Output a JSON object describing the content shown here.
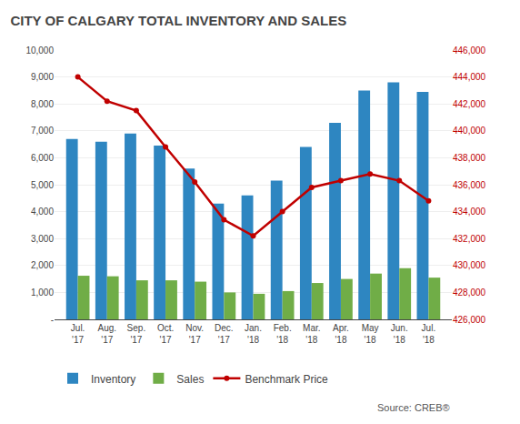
{
  "chart_data": {
    "type": "bar",
    "title": "CITY OF CALGARY TOTAL INVENTORY AND SALES",
    "categories": [
      "Jul.\n'17",
      "Aug.\n'17",
      "Sep.\n'17",
      "Oct.\n'17",
      "Nov.\n'17",
      "Dec.\n'17",
      "Jan.\n'18",
      "Feb.\n'18",
      "Mar.\n'18",
      "Apr.\n'18",
      "May\n'18",
      "Jun.\n'18",
      "Jul.\n'18"
    ],
    "series": [
      {
        "name": "Inventory",
        "type": "bar",
        "color": "#2E86C1",
        "values": [
          6700,
          6600,
          6900,
          6450,
          5600,
          4300,
          4600,
          5150,
          6400,
          7300,
          8500,
          8800,
          8450
        ]
      },
      {
        "name": "Sales",
        "type": "bar",
        "color": "#70AD47",
        "values": [
          1620,
          1600,
          1450,
          1450,
          1400,
          1000,
          950,
          1050,
          1350,
          1500,
          1700,
          1900,
          1550
        ]
      },
      {
        "name": "Benchmark Price",
        "type": "line",
        "axis": "y2",
        "color": "#C00000",
        "marker": "circle",
        "line_style": "solid",
        "values": [
          444000,
          442200,
          441500,
          438800,
          436200,
          433400,
          432200,
          434000,
          435800,
          436300,
          436800,
          436300,
          434800
        ]
      }
    ],
    "ylim": [
      0,
      10000
    ],
    "yticks": [
      {
        "value": 0,
        "label": "-"
      },
      {
        "value": 1000,
        "label": "1,000"
      },
      {
        "value": 2000,
        "label": "2,000"
      },
      {
        "value": 3000,
        "label": "3,000"
      },
      {
        "value": 4000,
        "label": "4,000"
      },
      {
        "value": 5000,
        "label": "5,000"
      },
      {
        "value": 6000,
        "label": "6,000"
      },
      {
        "value": 7000,
        "label": "7,000"
      },
      {
        "value": 8000,
        "label": "8,000"
      },
      {
        "value": 9000,
        "label": "9,000"
      },
      {
        "value": 10000,
        "label": "10,000"
      }
    ],
    "y2lim": [
      426000,
      446000
    ],
    "y2ticks": [
      {
        "value": 426000,
        "label": "426,000"
      },
      {
        "value": 428000,
        "label": "428,000"
      },
      {
        "value": 430000,
        "label": "430,000"
      },
      {
        "value": 432000,
        "label": "432,000"
      },
      {
        "value": 434000,
        "label": "434,000"
      },
      {
        "value": 436000,
        "label": "436,000"
      },
      {
        "value": 438000,
        "label": "438,000"
      },
      {
        "value": 440000,
        "label": "440,000"
      },
      {
        "value": 442000,
        "label": "442,000"
      },
      {
        "value": 444000,
        "label": "444,000"
      },
      {
        "value": 446000,
        "label": "446,000"
      }
    ],
    "grid": true,
    "legend": "bottom",
    "annotations": [
      "Source: CREB®"
    ]
  }
}
